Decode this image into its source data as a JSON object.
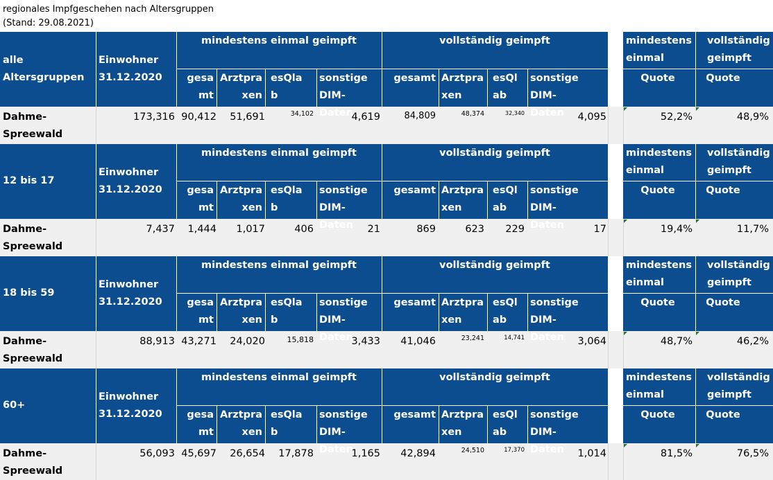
{
  "title": "regionales Impfgeschehen nach Altersgruppen",
  "stand": "(Stand: 29.08.2021)",
  "headers": {
    "einwohner_1": "Einwohner",
    "einwohner_2": "31.12.2020",
    "mind": "mindestens einmal geimpft",
    "voll": "vollständig geimpft",
    "gesa_1": "gesa",
    "gesa_2": "mt",
    "arzt_1": "Arztpra",
    "arzt_2": "xen",
    "esqla_1": "esQla",
    "esqla_2": "b",
    "sonst_1": "sonstige",
    "sonst_2": "DIM-Daten",
    "gesamt": "gesamt",
    "esql_1": "esQl",
    "esql_2": "ab",
    "sdim_1": "sonstige DIM-",
    "sdim_2": "Daten",
    "mq_1": "mindestens",
    "mq_2": "einmal",
    "vq_1": "vollständig",
    "vq_2": "geimpft",
    "quote": "Quote"
  },
  "blocks": [
    {
      "group_1": "alle",
      "group_2": "Altersgruppen",
      "region_1": "Dahme-",
      "region_2": "Spreewald",
      "values": [
        "173,316",
        "90,412",
        "51,691",
        "34,102",
        "4,619",
        "84,809",
        "48,374",
        "32,340",
        "4,095",
        "52,2%",
        "48,9%"
      ]
    },
    {
      "group_1": "12 bis 17",
      "group_2": "",
      "region_1": "Dahme-",
      "region_2": "Spreewald",
      "values": [
        "7,437",
        "1,444",
        "1,017",
        "406",
        "21",
        "869",
        "623",
        "229",
        "17",
        "19,4%",
        "11,7%"
      ]
    },
    {
      "group_1": "18 bis 59",
      "group_2": "",
      "region_1": "Dahme-",
      "region_2": "Spreewald",
      "values": [
        "88,913",
        "43,271",
        "24,020",
        "15,818",
        "3,433",
        "41,046",
        "23,241",
        "14,741",
        "3,064",
        "48,7%",
        "46,2%"
      ]
    },
    {
      "group_1": "60+",
      "group_2": "",
      "region_1": "Dahme-",
      "region_2": "Spreewald",
      "values": [
        "56,093",
        "45,697",
        "26,654",
        "17,878",
        "1,165",
        "42,894",
        "24,510",
        "17,370",
        "1,014",
        "81,5%",
        "76,5%"
      ]
    }
  ]
}
